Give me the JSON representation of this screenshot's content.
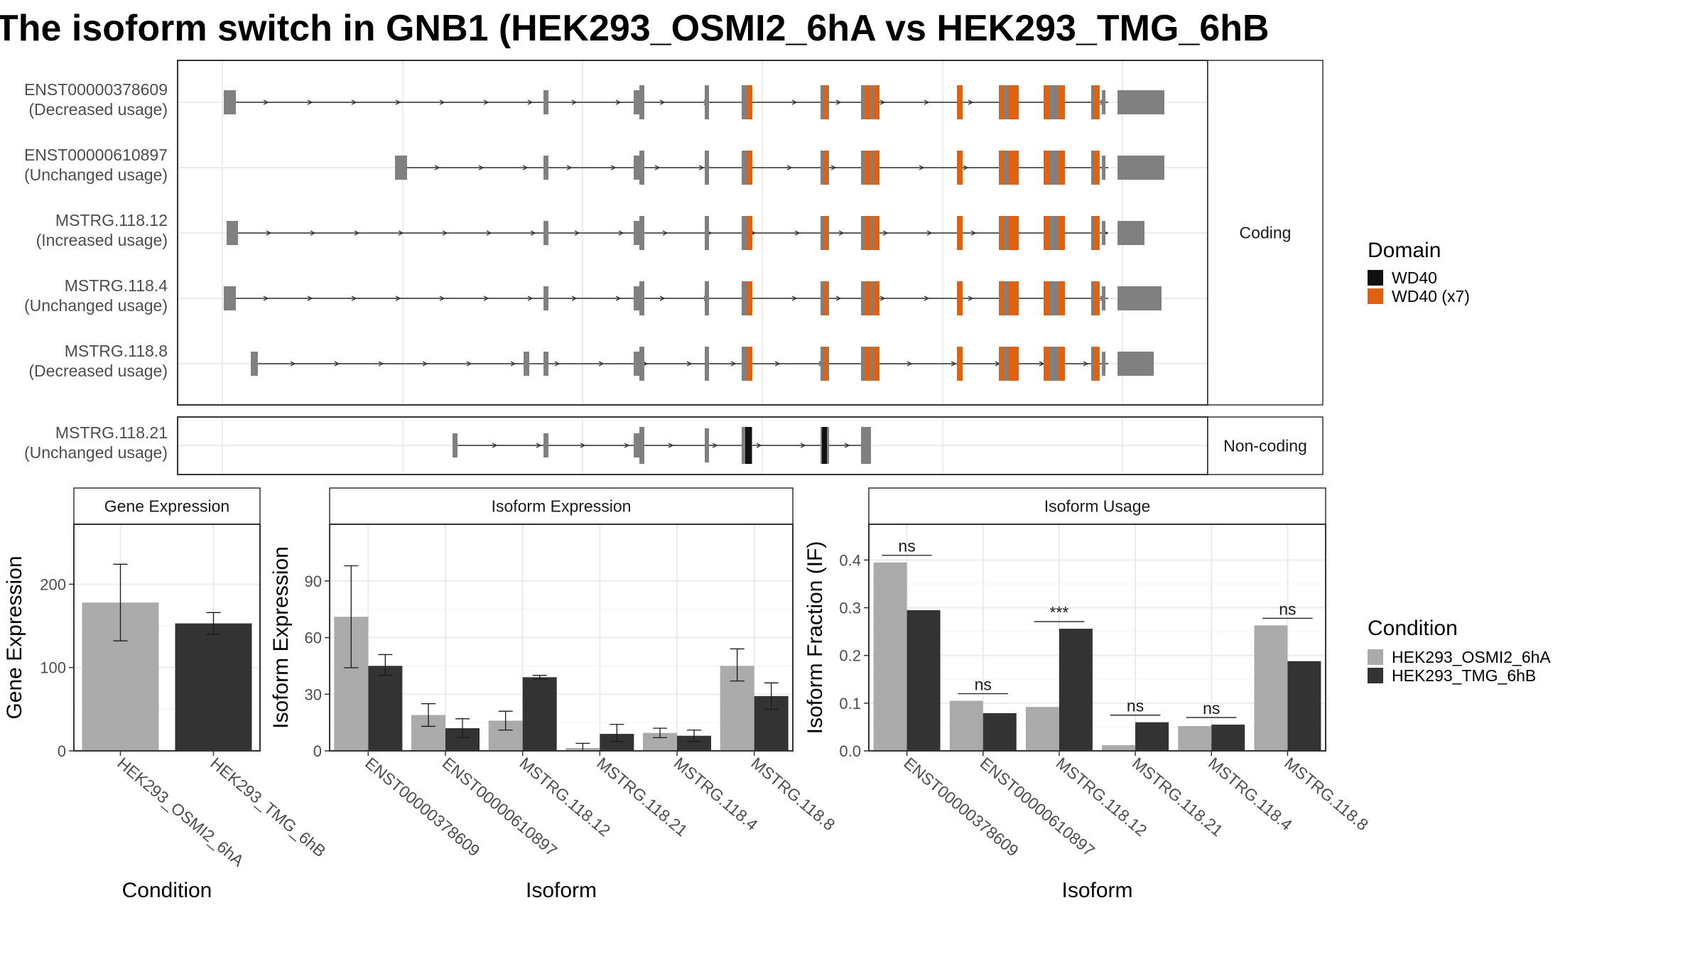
{
  "title": "The isoform switch in GNB1 (HEK293_OSMI2_6hA vs HEK293_TMG_6hB",
  "colors": {
    "exon": "#808080",
    "wd40": "#111111",
    "wd40x7": "#E0620F",
    "cond1": "#AAAAAA",
    "cond2": "#333333",
    "grid": "#EBEBEB",
    "frame": "#333333",
    "strip_bg": "#FFFFFF"
  },
  "structure": {
    "panels": [
      {
        "label": "Coding",
        "transcripts": [
          {
            "id": "ENST00000378609",
            "usage": "(Decreased usage)"
          },
          {
            "id": "ENST00000610897",
            "usage": "(Unchanged usage)"
          },
          {
            "id": "MSTRG.118.12",
            "usage": "(Increased usage)"
          },
          {
            "id": "MSTRG.118.4",
            "usage": "(Unchanged usage)"
          },
          {
            "id": "MSTRG.118.8",
            "usage": "(Decreased usage)"
          }
        ]
      },
      {
        "label": "Non-coding",
        "transcripts": [
          {
            "id": "MSTRG.118.21",
            "usage": "(Unchanged usage)"
          }
        ]
      }
    ]
  },
  "legend_domain": {
    "title": "Domain",
    "items": [
      {
        "label": "WD40",
        "color": "#111111"
      },
      {
        "label": "WD40 (x7)",
        "color": "#E0620F"
      }
    ]
  },
  "legend_condition": {
    "title": "Condition",
    "items": [
      {
        "label": "HEK293_OSMI2_6hA",
        "color": "#AAAAAA"
      },
      {
        "label": "HEK293_TMG_6hB",
        "color": "#333333"
      }
    ]
  },
  "chart_data": [
    {
      "type": "bar",
      "title": "Gene Expression",
      "xlabel": "Condition",
      "ylabel": "Gene Expression",
      "categories": [
        "HEK293_OSMI2_6hA",
        "HEK293_TMG_6hB"
      ],
      "values": [
        178,
        153
      ],
      "error_low": [
        132,
        140
      ],
      "error_high": [
        224,
        166
      ],
      "ylim": [
        0,
        272
      ],
      "yticks": [
        0,
        100,
        200
      ]
    },
    {
      "type": "bar",
      "title": "Isoform Expression",
      "xlabel": "Isoform",
      "ylabel": "Isoform Expression",
      "categories": [
        "ENST00000378609",
        "ENST00000610897",
        "MSTRG.118.12",
        "MSTRG.118.21",
        "MSTRG.118.4",
        "MSTRG.118.8"
      ],
      "series": [
        {
          "name": "HEK293_OSMI2_6hA",
          "values": [
            71,
            19,
            16,
            1.5,
            9.5,
            45
          ],
          "error_low": [
            44,
            13,
            11,
            0,
            7,
            37
          ],
          "error_high": [
            98,
            25,
            21,
            4,
            12,
            54
          ]
        },
        {
          "name": "HEK293_TMG_6hB",
          "values": [
            45,
            12,
            39,
            9,
            8,
            29
          ],
          "error_low": [
            40,
            7,
            38,
            5,
            5,
            22
          ],
          "error_high": [
            51,
            17,
            40,
            14,
            11,
            36
          ]
        }
      ],
      "ylim": [
        0,
        120
      ],
      "yticks": [
        0,
        30,
        60,
        90
      ]
    },
    {
      "type": "bar",
      "title": "Isoform Usage",
      "xlabel": "Isoform",
      "ylabel": "Isoform Fraction (IF)",
      "categories": [
        "ENST00000378609",
        "ENST00000610897",
        "MSTRG.118.12",
        "MSTRG.118.21",
        "MSTRG.118.4",
        "MSTRG.118.8"
      ],
      "series": [
        {
          "name": "HEK293_OSMI2_6hA",
          "values": [
            0.395,
            0.105,
            0.092,
            0.012,
            0.052,
            0.263
          ]
        },
        {
          "name": "HEK293_TMG_6hB",
          "values": [
            0.295,
            0.079,
            0.256,
            0.06,
            0.055,
            0.188
          ]
        }
      ],
      "significance": [
        "ns",
        "ns",
        "***",
        "ns",
        "ns",
        "ns"
      ],
      "ylim": [
        0,
        0.475
      ],
      "yticks": [
        0.0,
        0.1,
        0.2,
        0.3,
        0.4
      ]
    }
  ]
}
